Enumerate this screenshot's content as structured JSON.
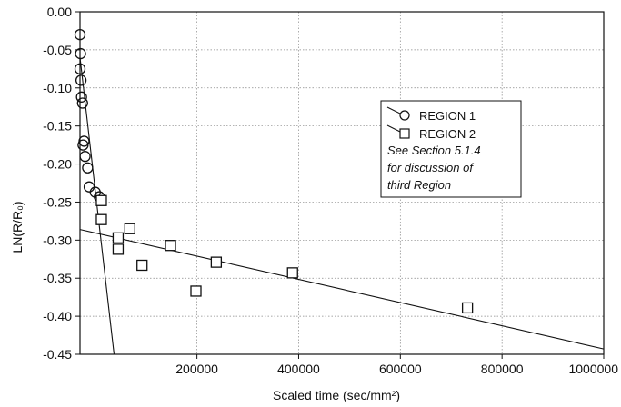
{
  "chart_data": {
    "type": "scatter",
    "xlabel": "Scaled time (sec/mm²)",
    "ylabel": "LN(R/R₀)",
    "xlim": [
      -30000,
      1000000
    ],
    "ylim": [
      -0.45,
      0.0
    ],
    "x_ticks": [
      200000,
      400000,
      600000,
      800000,
      1000000
    ],
    "x_tick_labels": [
      "200000",
      "400000",
      "600000",
      "800000",
      "1000000"
    ],
    "y_ticks": [
      0.0,
      -0.05,
      -0.1,
      -0.15,
      -0.2,
      -0.25,
      -0.3,
      -0.35,
      -0.4,
      -0.45
    ],
    "y_tick_labels": [
      "0.00",
      "-0.05",
      "-0.10",
      "-0.15",
      "-0.20",
      "-0.25",
      "-0.30",
      "-0.35",
      "-0.40",
      "-0.45"
    ],
    "grid": true,
    "legend_position": "right",
    "series": [
      {
        "name": "REGION 1",
        "marker": "circle",
        "points": [
          {
            "x": -30000,
            "y": -0.03
          },
          {
            "x": -29000,
            "y": -0.055
          },
          {
            "x": -30000,
            "y": -0.075
          },
          {
            "x": -28000,
            "y": -0.09
          },
          {
            "x": -27000,
            "y": -0.112
          },
          {
            "x": -25000,
            "y": -0.12
          },
          {
            "x": -22000,
            "y": -0.17
          },
          {
            "x": -24000,
            "y": -0.175
          },
          {
            "x": -20000,
            "y": -0.19
          },
          {
            "x": -15000,
            "y": -0.205
          },
          {
            "x": -12000,
            "y": -0.23
          },
          {
            "x": 0,
            "y": -0.237
          },
          {
            "x": 8000,
            "y": -0.243
          }
        ],
        "fit": {
          "x": [
            -30000,
            37000
          ],
          "y": [
            -0.06,
            -0.45
          ]
        }
      },
      {
        "name": "REGION 2",
        "marker": "square",
        "points": [
          {
            "x": 12000,
            "y": -0.248
          },
          {
            "x": 12000,
            "y": -0.273
          },
          {
            "x": 45000,
            "y": -0.297
          },
          {
            "x": 45000,
            "y": -0.312
          },
          {
            "x": 68000,
            "y": -0.285
          },
          {
            "x": 92000,
            "y": -0.333
          },
          {
            "x": 148000,
            "y": -0.307
          },
          {
            "x": 198000,
            "y": -0.367
          },
          {
            "x": 238000,
            "y": -0.329
          },
          {
            "x": 388000,
            "y": -0.343
          },
          {
            "x": 732000,
            "y": -0.389
          }
        ],
        "fit": {
          "x": [
            -30000,
            1000000
          ],
          "y": [
            -0.286,
            -0.443
          ]
        }
      }
    ],
    "annotation": [
      "See Section 5.1.4",
      "for discussion of",
      "third Region"
    ]
  }
}
